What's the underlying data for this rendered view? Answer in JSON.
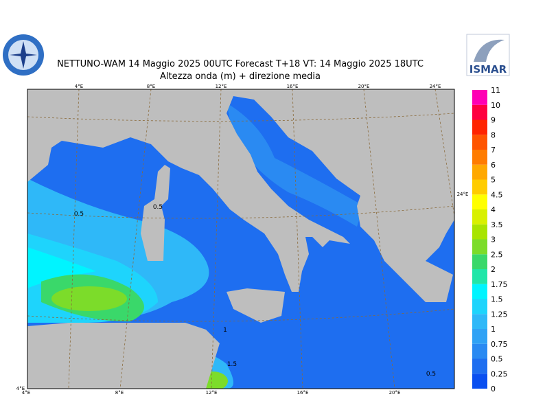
{
  "header": {
    "title_line1": "NETTUNO-WAM  14   Maggio  2025 00UTC Forecast T+18 VT: 14   Maggio  2025 18UTC",
    "title_line2": "Altezza onda (m) + direzione media"
  },
  "logos": {
    "right": "ISMAR"
  },
  "map": {
    "top_labels": [
      "4°E",
      "8°E",
      "12°E",
      "16°E",
      "20°E",
      "24°E"
    ],
    "bottom_labels": [
      "4°E",
      "8°E",
      "12°E",
      "16°E",
      "20°E"
    ],
    "corner_label": "4°E",
    "right_label": "24°E",
    "contour_labels": [
      "0.5",
      "0.5",
      "1",
      "1.5",
      "0.5"
    ]
  },
  "legend": {
    "labels": [
      "0",
      "0.25",
      "0.5",
      "0.75",
      "1",
      "1.25",
      "1.5",
      "1.75",
      "2",
      "2.5",
      "3",
      "3.5",
      "4",
      "4.5",
      "5",
      "6",
      "7",
      "8",
      "9",
      "10",
      "11"
    ],
    "colors": [
      "#0a4ff0",
      "#1e6ef0",
      "#2a8af2",
      "#30a2f5",
      "#2fb8f8",
      "#1ed4fc",
      "#00f4ff",
      "#20e6a8",
      "#3ad86a",
      "#7cdc2a",
      "#a8e400",
      "#d8f000",
      "#ffff00",
      "#ffcc00",
      "#ffa800",
      "#ff7c00",
      "#ff5400",
      "#ff2400",
      "#ff0040",
      "#ff00b4"
    ]
  }
}
